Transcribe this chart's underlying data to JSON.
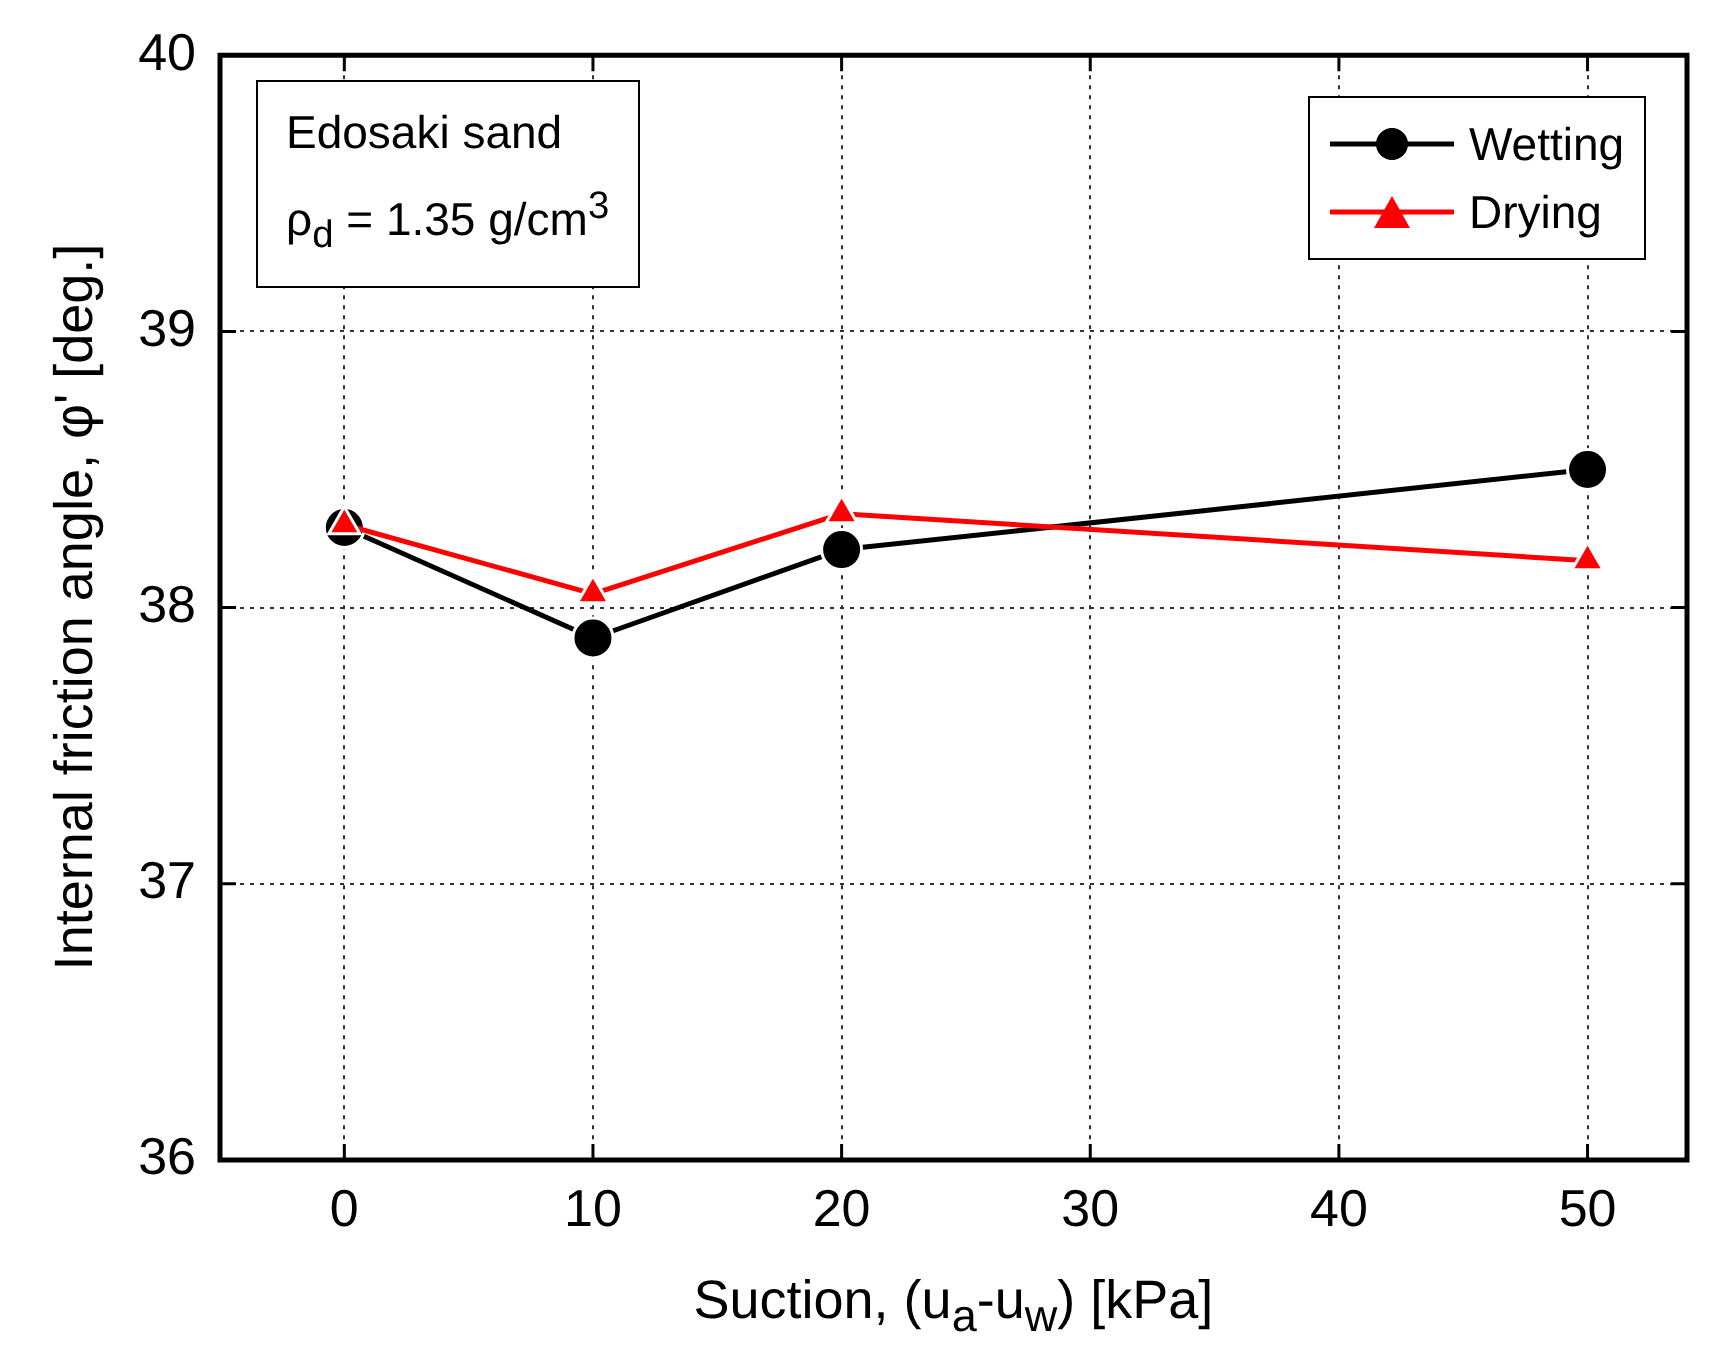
{
  "chart_data": {
    "type": "line",
    "xlabel": "Suction, (u$_{a}$-u$_{w}$) [kPa]",
    "ylabel": "Internal friction angle, φ' [deg.]",
    "x": [
      0,
      10,
      20,
      50
    ],
    "series": [
      {
        "name": "Wetting",
        "color": "#000000",
        "marker": "circle",
        "values": [
          38.29,
          37.89,
          38.21,
          38.5
        ]
      },
      {
        "name": "Drying",
        "color": "#ff0000",
        "marker": "triangle",
        "values": [
          38.3,
          38.05,
          38.34,
          38.17
        ]
      }
    ],
    "xlim": [
      -5,
      54
    ],
    "xticks": [
      0,
      10,
      20,
      30,
      40,
      50
    ],
    "ylim": [
      36,
      40
    ],
    "yticks": [
      36,
      37,
      38,
      39,
      40
    ],
    "grid": true,
    "legend": "top right",
    "annotations": [
      "Edosaki sand",
      "ρ$_{d}$ = 1.35 g/cm$^{3}$"
    ]
  }
}
